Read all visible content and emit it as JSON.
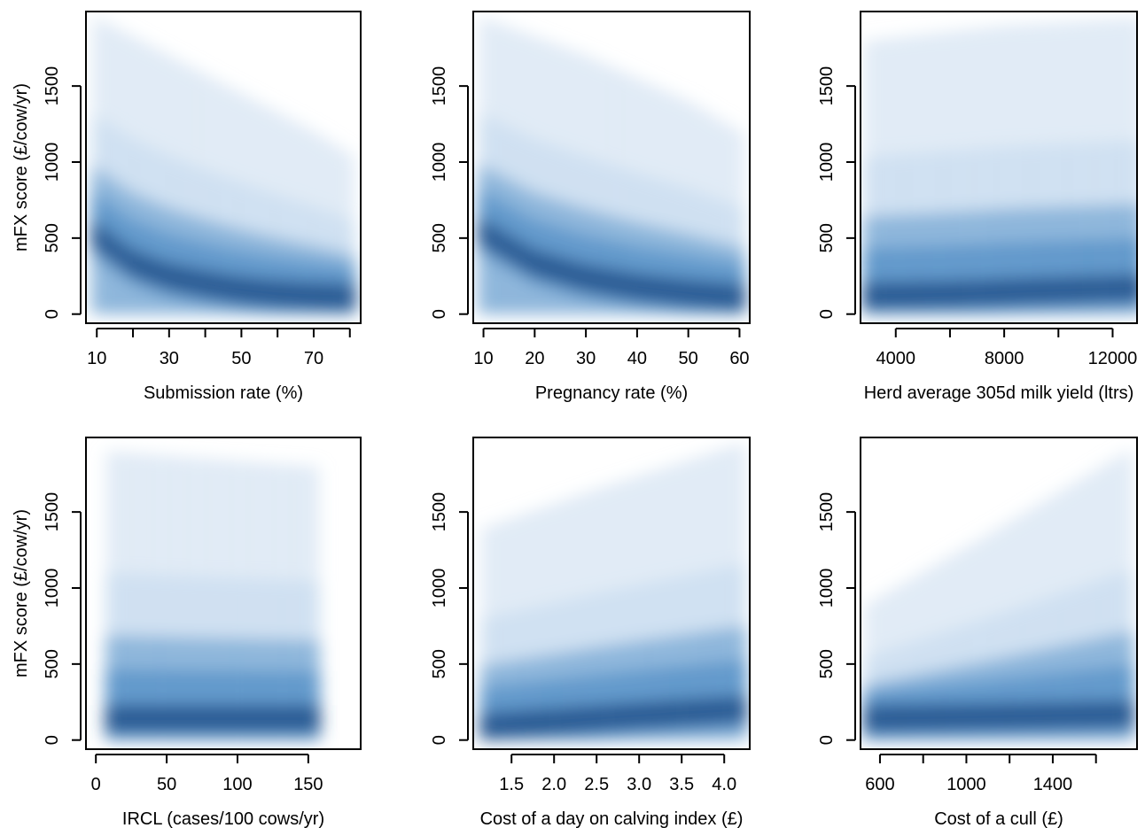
{
  "colors": {
    "density_high": "#08306b",
    "density_mid": "#2171b5",
    "density_low": "#c6dbef",
    "background": "#ffffff",
    "axis": "#000000"
  },
  "chart_data": [
    {
      "type": "heatmap",
      "xlabel": "Submission rate (%)",
      "ylabel": "mFX score (£/cow/yr)",
      "xlim": [
        7,
        83
      ],
      "ylim": [
        -60,
        1990
      ],
      "xticks": [
        10,
        20,
        30,
        40,
        50,
        60,
        70,
        80
      ],
      "xtick_labels": [
        "10",
        "",
        "30",
        "",
        "50",
        "",
        "70",
        ""
      ],
      "yticks": [
        0,
        500,
        1000,
        1500
      ],
      "ytick_labels": [
        "0",
        "500",
        "1000",
        "1500"
      ],
      "pattern": "decreasing",
      "ridge": [
        [
          10,
          500
        ],
        [
          20,
          320
        ],
        [
          30,
          230
        ],
        [
          40,
          180
        ],
        [
          50,
          140
        ],
        [
          60,
          115
        ],
        [
          70,
          100
        ],
        [
          80,
          90
        ]
      ],
      "upper_edge": [
        [
          10,
          1950
        ],
        [
          30,
          1700
        ],
        [
          50,
          1450
        ],
        [
          70,
          1200
        ],
        [
          80,
          1050
        ]
      ]
    },
    {
      "type": "heatmap",
      "xlabel": "Pregnancy rate (%)",
      "ylabel": "",
      "xlim": [
        8,
        62
      ],
      "ylim": [
        -60,
        1990
      ],
      "xticks": [
        10,
        20,
        30,
        40,
        50,
        60
      ],
      "xtick_labels": [
        "10",
        "20",
        "30",
        "40",
        "50",
        "60"
      ],
      "yticks": [
        0,
        500,
        1000,
        1500
      ],
      "ytick_labels": [
        "0",
        "500",
        "1000",
        "1500"
      ],
      "pattern": "decreasing",
      "ridge": [
        [
          10,
          520
        ],
        [
          20,
          320
        ],
        [
          30,
          220
        ],
        [
          40,
          160
        ],
        [
          50,
          120
        ],
        [
          60,
          90
        ]
      ],
      "upper_edge": [
        [
          10,
          1950
        ],
        [
          30,
          1700
        ],
        [
          50,
          1400
        ],
        [
          60,
          1200
        ]
      ]
    },
    {
      "type": "heatmap",
      "xlabel": "Herd average 305d milk yield (ltrs)",
      "ylabel": "",
      "xlim": [
        2700,
        12900
      ],
      "ylim": [
        -60,
        1990
      ],
      "xticks": [
        4000,
        6000,
        8000,
        10000,
        12000
      ],
      "xtick_labels": [
        "4000",
        "",
        "8000",
        "",
        "12000"
      ],
      "yticks": [
        0,
        500,
        1000,
        1500
      ],
      "ytick_labels": [
        "0",
        "500",
        "1000",
        "1500"
      ],
      "pattern": "flat",
      "ridge": [
        [
          3000,
          100
        ],
        [
          6000,
          110
        ],
        [
          9000,
          130
        ],
        [
          12900,
          150
        ]
      ],
      "upper_edge": [
        [
          3000,
          1800
        ],
        [
          8000,
          1900
        ],
        [
          12900,
          1950
        ]
      ]
    },
    {
      "type": "heatmap",
      "xlabel": "IRCL (cases/100 cows/yr)",
      "ylabel": "mFX score (£/cow/yr)",
      "xlim": [
        -7,
        187
      ],
      "ylim": [
        -60,
        1990
      ],
      "xticks": [
        0,
        50,
        100,
        150
      ],
      "xtick_labels": [
        "0",
        "50",
        "100",
        "150"
      ],
      "yticks": [
        0,
        500,
        1000,
        1500
      ],
      "ytick_labels": [
        "0",
        "500",
        "1000",
        "1500"
      ],
      "pattern": "flat",
      "ridge": [
        [
          10,
          120
        ],
        [
          80,
          120
        ],
        [
          155,
          120
        ]
      ],
      "upper_edge": [
        [
          10,
          1900
        ],
        [
          80,
          1850
        ],
        [
          155,
          1800
        ]
      ]
    },
    {
      "type": "heatmap",
      "xlabel": "Cost of a day on calving index (£)",
      "ylabel": "",
      "xlim": [
        1.05,
        4.3
      ],
      "ylim": [
        -60,
        1990
      ],
      "xticks": [
        1.5,
        2.0,
        2.5,
        3.0,
        3.5,
        4.0
      ],
      "xtick_labels": [
        "1.5",
        "2.0",
        "2.5",
        "3.0",
        "3.5",
        "4.0"
      ],
      "yticks": [
        0,
        500,
        1000,
        1500
      ],
      "ytick_labels": [
        "0",
        "500",
        "1000",
        "1500"
      ],
      "pattern": "increasing",
      "ridge": [
        [
          1.2,
          70
        ],
        [
          2.0,
          100
        ],
        [
          3.0,
          140
        ],
        [
          4.2,
          180
        ]
      ],
      "upper_edge": [
        [
          1.2,
          1400
        ],
        [
          2.5,
          1650
        ],
        [
          4.2,
          1950
        ]
      ]
    },
    {
      "type": "heatmap",
      "xlabel": "Cost of a cull (£)",
      "ylabel": "",
      "xlim": [
        510,
        1790
      ],
      "ylim": [
        -60,
        1990
      ],
      "xticks": [
        600,
        800,
        1000,
        1200,
        1400,
        1600
      ],
      "xtick_labels": [
        "600",
        "",
        "1000",
        "",
        "1400",
        ""
      ],
      "yticks": [
        0,
        500,
        1000,
        1500
      ],
      "ytick_labels": [
        "0",
        "500",
        "1000",
        "1500"
      ],
      "pattern": "increasing",
      "ridge": [
        [
          550,
          120
        ],
        [
          1000,
          130
        ],
        [
          1400,
          140
        ],
        [
          1750,
          150
        ]
      ],
      "upper_edge": [
        [
          550,
          900
        ],
        [
          1100,
          1350
        ],
        [
          1750,
          1900
        ]
      ]
    }
  ]
}
